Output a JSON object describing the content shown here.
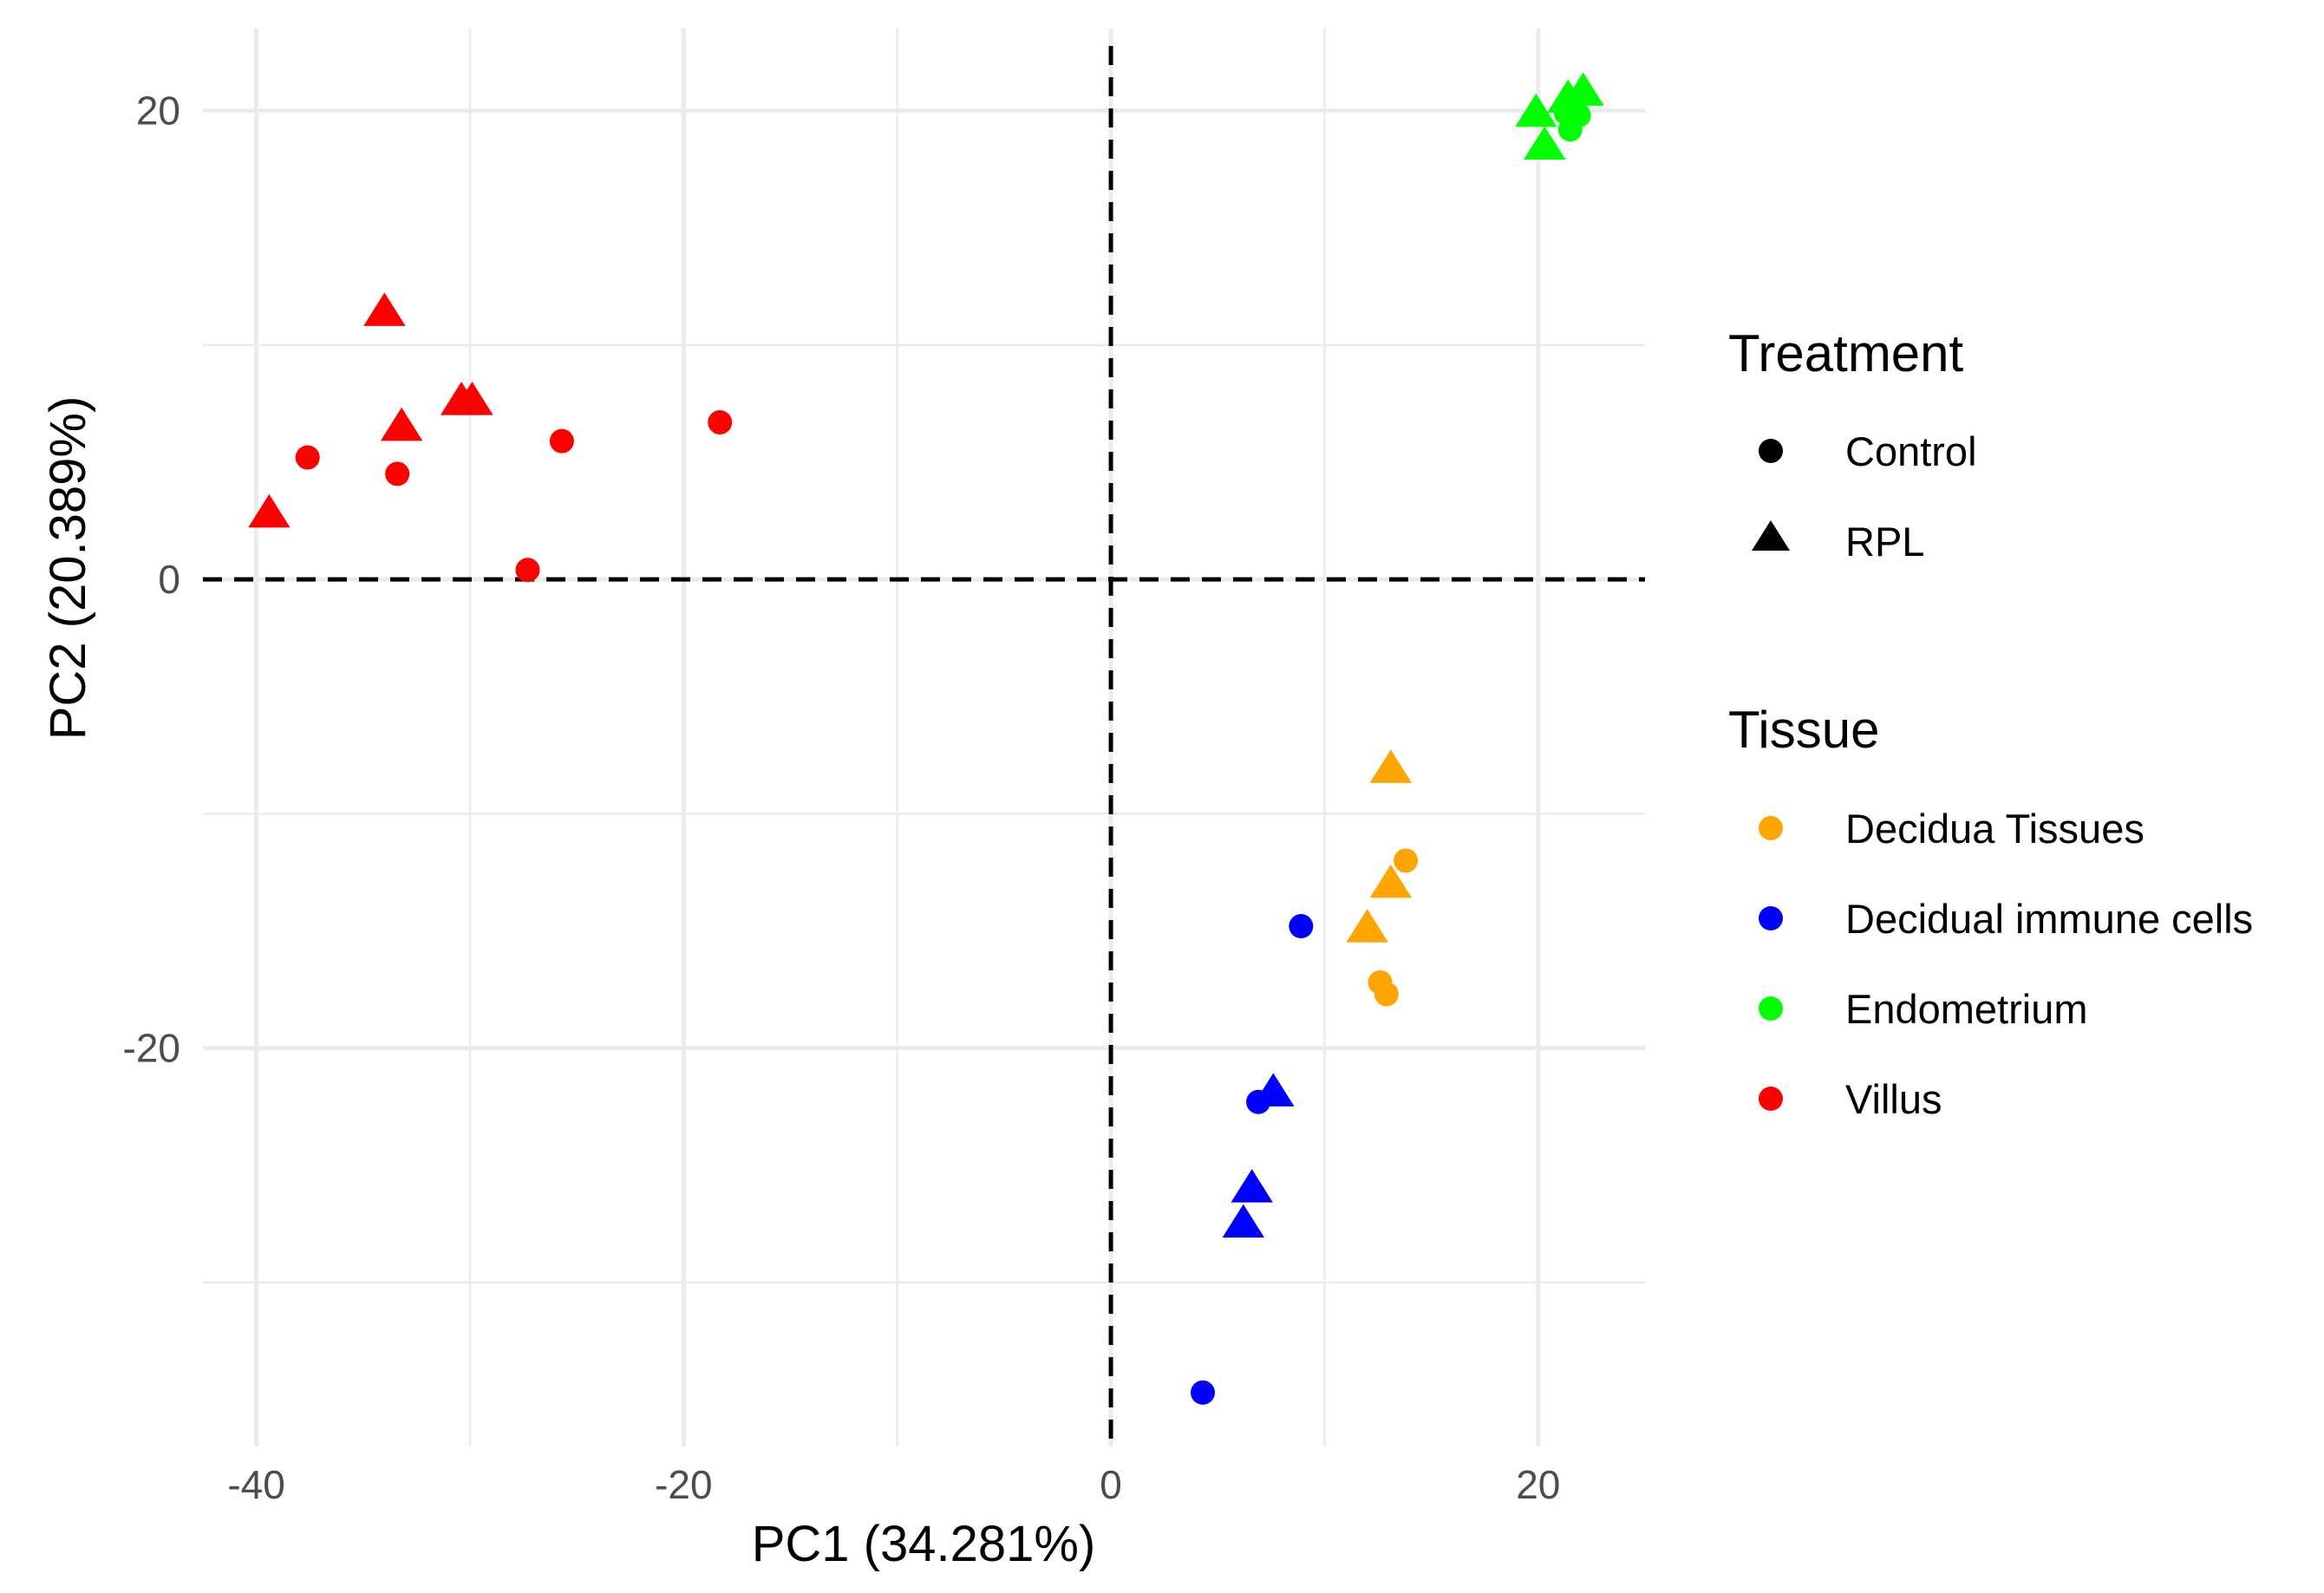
{
  "chart_data": {
    "type": "scatter",
    "title": "",
    "xlabel": "PC1 (34.281%)",
    "ylabel": "PC2 (20.389%)",
    "xlim": [
      -42.5,
      25.0
    ],
    "ylim": [
      -37.0,
      23.5
    ],
    "xticks": [
      -40,
      -20,
      0,
      20
    ],
    "yticks": [
      -20,
      0,
      20
    ],
    "xtick_labels": [
      "-40",
      "-20",
      "0",
      "20"
    ],
    "ytick_labels": [
      "-20",
      "0",
      "20"
    ],
    "grid": true,
    "reference_lines": {
      "x": 0,
      "y": 0,
      "style": "dashed"
    },
    "legends": [
      {
        "title": "Treatment",
        "items": [
          {
            "label": "Control",
            "shape": "circle"
          },
          {
            "label": "RPL",
            "shape": "triangle"
          }
        ]
      },
      {
        "title": "Tissue",
        "items": [
          {
            "label": "Decidua Tissues",
            "color": "#FFA500"
          },
          {
            "label": "Decidual immune cells",
            "color": "#0000FF"
          },
          {
            "label": "Endometrium",
            "color": "#00FF00"
          },
          {
            "label": "Villus",
            "color": "#FF0000"
          }
        ]
      }
    ],
    "series": [
      {
        "name": "Villus",
        "color": "#FF0000",
        "points": [
          {
            "x": -34.0,
            "y": 11.2,
            "treatment": "RPL"
          },
          {
            "x": -29.9,
            "y": 7.4,
            "treatment": "RPL"
          },
          {
            "x": -30.4,
            "y": 7.4,
            "treatment": "RPL"
          },
          {
            "x": -33.2,
            "y": 6.3,
            "treatment": "RPL"
          },
          {
            "x": -39.4,
            "y": 2.6,
            "treatment": "RPL"
          },
          {
            "x": -37.6,
            "y": 5.2,
            "treatment": "Control"
          },
          {
            "x": -33.4,
            "y": 4.5,
            "treatment": "Control"
          },
          {
            "x": -25.7,
            "y": 5.9,
            "treatment": "Control"
          },
          {
            "x": -18.3,
            "y": 6.7,
            "treatment": "Control"
          },
          {
            "x": -27.3,
            "y": 0.4,
            "treatment": "Control"
          }
        ]
      },
      {
        "name": "Endometrium",
        "color": "#00FF00",
        "points": [
          {
            "x": 19.9,
            "y": 19.7,
            "treatment": "RPL"
          },
          {
            "x": 20.3,
            "y": 18.3,
            "treatment": "RPL"
          },
          {
            "x": 21.4,
            "y": 20.3,
            "treatment": "RPL"
          },
          {
            "x": 22.1,
            "y": 20.6,
            "treatment": "RPL"
          },
          {
            "x": 21.3,
            "y": 19.9,
            "treatment": "Control"
          },
          {
            "x": 21.9,
            "y": 19.8,
            "treatment": "Control"
          },
          {
            "x": 21.5,
            "y": 19.2,
            "treatment": "Control"
          }
        ]
      },
      {
        "name": "Decidua Tissues",
        "color": "#FFA500",
        "points": [
          {
            "x": 13.1,
            "y": -8.3,
            "treatment": "RPL"
          },
          {
            "x": 13.1,
            "y": -13.2,
            "treatment": "RPL"
          },
          {
            "x": 12.0,
            "y": -15.1,
            "treatment": "RPL"
          },
          {
            "x": 13.8,
            "y": -12.0,
            "treatment": "Control"
          },
          {
            "x": 12.6,
            "y": -17.2,
            "treatment": "Control"
          },
          {
            "x": 12.9,
            "y": -17.7,
            "treatment": "Control"
          }
        ]
      },
      {
        "name": "Decidual immune cells",
        "color": "#0000FF",
        "points": [
          {
            "x": 7.6,
            "y": -22.1,
            "treatment": "RPL"
          },
          {
            "x": 6.6,
            "y": -26.2,
            "treatment": "RPL"
          },
          {
            "x": 6.2,
            "y": -27.7,
            "treatment": "RPL"
          },
          {
            "x": 8.9,
            "y": -14.8,
            "treatment": "Control"
          },
          {
            "x": 6.9,
            "y": -22.3,
            "treatment": "Control"
          },
          {
            "x": 4.3,
            "y": -34.7,
            "treatment": "Control"
          }
        ]
      }
    ]
  }
}
